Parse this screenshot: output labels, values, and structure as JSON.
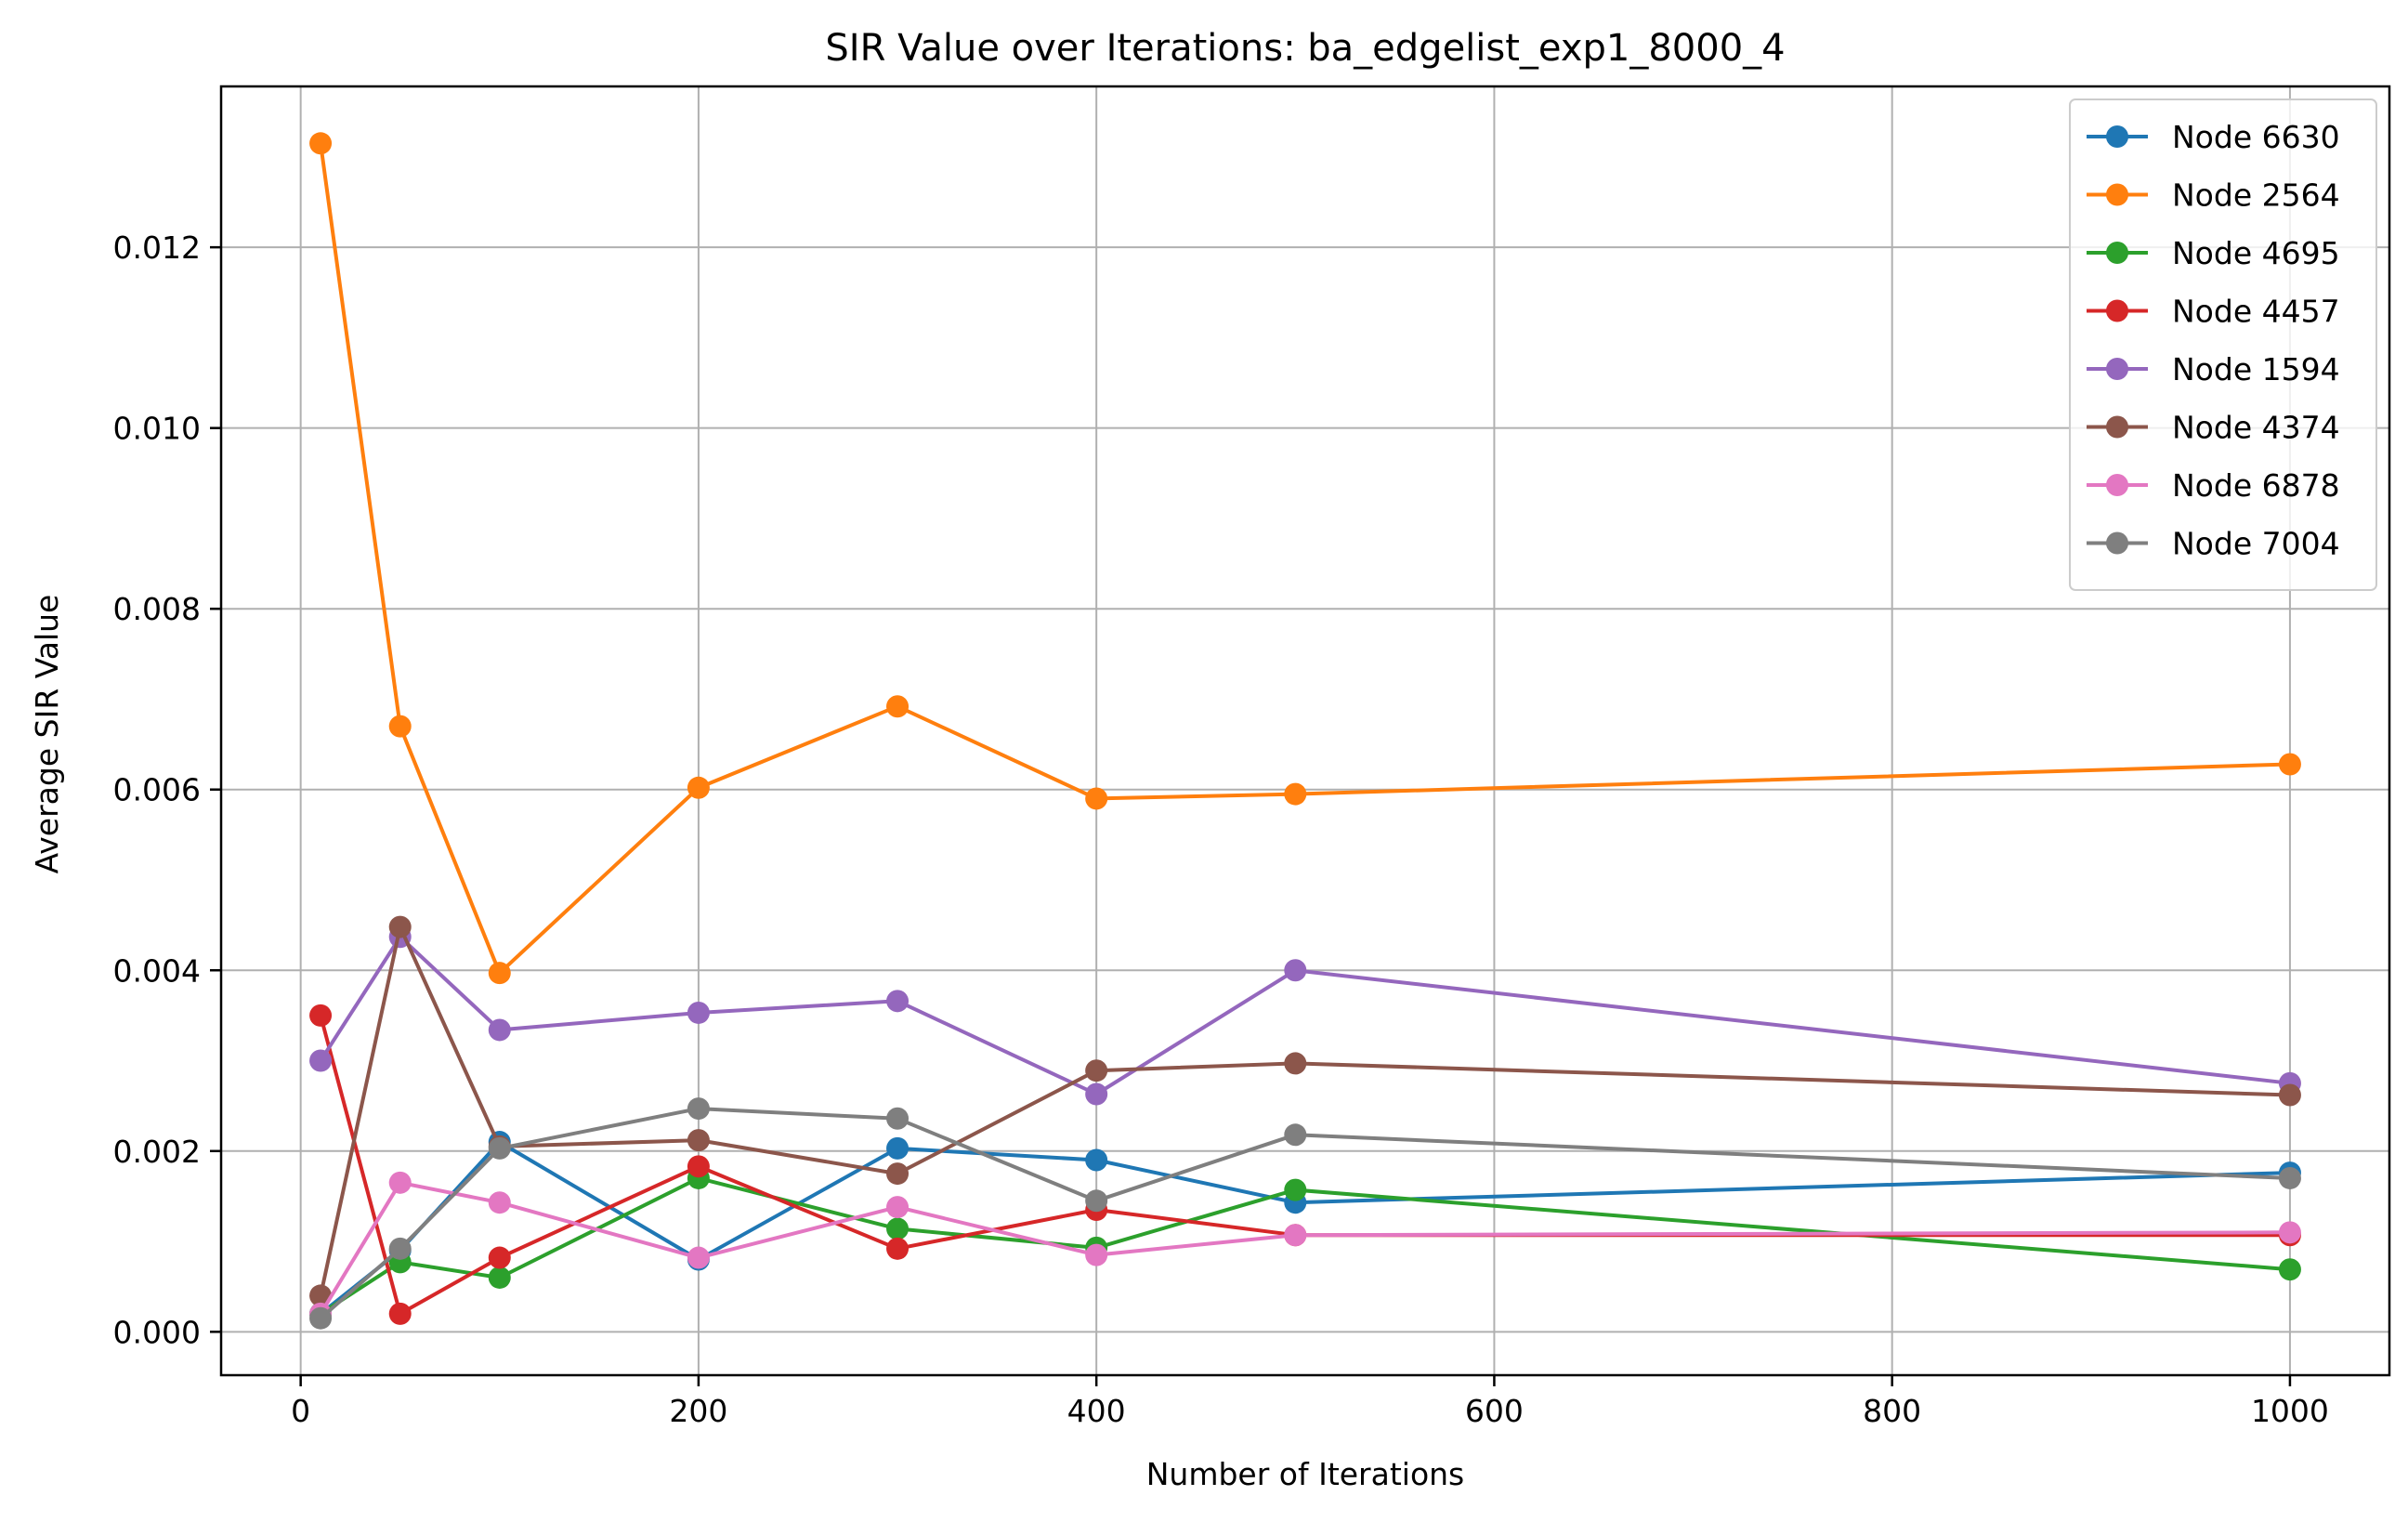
{
  "chart_data": {
    "type": "line",
    "title": "SIR Value over Iterations: ba_edgelist_exp1_8000_4",
    "xlabel": "Number of Iterations",
    "ylabel": "Average SIR Value",
    "xlim": [
      -40,
      1050
    ],
    "ylim": [
      -0.00048,
      0.01378
    ],
    "xticks": [
      0,
      200,
      400,
      600,
      800,
      1000
    ],
    "xtick_labels": [
      "0",
      "200",
      "400",
      "600",
      "800",
      "1000"
    ],
    "yticks": [
      0.0,
      0.002,
      0.004,
      0.006,
      0.008,
      0.01,
      0.012
    ],
    "ytick_labels": [
      "0.000",
      "0.002",
      "0.004",
      "0.006",
      "0.008",
      "0.010",
      "0.012"
    ],
    "grid": true,
    "legend_position": "top-right",
    "x": [
      10,
      50,
      100,
      200,
      300,
      400,
      500,
      1000
    ],
    "series": [
      {
        "name": "Node 6630",
        "color": "#1f77b4",
        "values": [
          0.0002,
          0.0009,
          0.0021,
          0.0008,
          0.00203,
          0.0019,
          0.00143,
          0.00176
        ]
      },
      {
        "name": "Node 2564",
        "color": "#ff7f0e",
        "values": [
          0.01315,
          0.0067,
          0.00397,
          0.00602,
          0.00692,
          0.0059,
          0.00595,
          0.00628
        ]
      },
      {
        "name": "Node 4695",
        "color": "#2ca02c",
        "values": [
          0.0002,
          0.00077,
          0.0006,
          0.0017,
          0.00114,
          0.00093,
          0.00157,
          0.00069
        ]
      },
      {
        "name": "Node 4457",
        "color": "#d62728",
        "values": [
          0.0035,
          0.0002,
          0.00082,
          0.00183,
          0.00092,
          0.00135,
          0.00107,
          0.00107
        ]
      },
      {
        "name": "Node 1594",
        "color": "#9467bd",
        "values": [
          0.003,
          0.00437,
          0.00334,
          0.00353,
          0.00366,
          0.00263,
          0.004,
          0.00275
        ]
      },
      {
        "name": "Node 4374",
        "color": "#8c564b",
        "values": [
          0.0004,
          0.00448,
          0.00205,
          0.00212,
          0.00175,
          0.00289,
          0.00297,
          0.00262
        ]
      },
      {
        "name": "Node 6878",
        "color": "#e377c2",
        "values": [
          0.0002,
          0.00165,
          0.00143,
          0.00082,
          0.00138,
          0.00085,
          0.00107,
          0.0011
        ]
      },
      {
        "name": "Node 7004",
        "color": "#7f7f7f",
        "values": [
          0.00015,
          0.00092,
          0.00203,
          0.00247,
          0.00236,
          0.00145,
          0.00218,
          0.0017
        ]
      }
    ]
  }
}
